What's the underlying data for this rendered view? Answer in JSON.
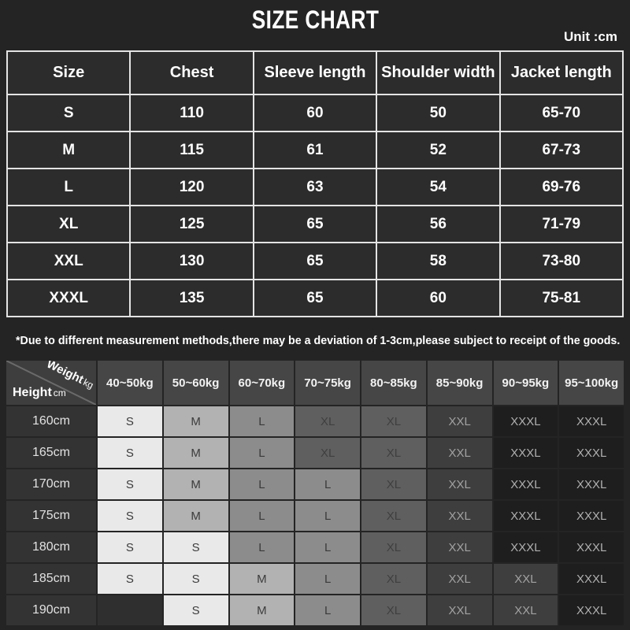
{
  "title": "SIZE CHART",
  "unit_label": "Unit :cm",
  "note": "*Due to different measurement methods,there may be a deviation of 1-3cm,please subject to receipt of the goods.",
  "chart_data": [
    {
      "type": "table",
      "name": "garment-measurements",
      "unit": "cm",
      "columns": [
        "Size",
        "Chest",
        "Sleeve length",
        "Shoulder width",
        "Jacket length"
      ],
      "rows": [
        [
          "S",
          "110",
          "60",
          "50",
          "65-70"
        ],
        [
          "M",
          "115",
          "61",
          "52",
          "67-73"
        ],
        [
          "L",
          "120",
          "63",
          "54",
          "69-76"
        ],
        [
          "XL",
          "125",
          "65",
          "56",
          "71-79"
        ],
        [
          "XXL",
          "130",
          "65",
          "58",
          "73-80"
        ],
        [
          "XXXL",
          "135",
          "65",
          "60",
          "75-81"
        ]
      ]
    },
    {
      "type": "table",
      "name": "height-weight-size-recommendation",
      "corner": {
        "col_axis": "Weight",
        "col_axis_unit": "kg",
        "row_axis": "Height",
        "row_axis_unit": "cm"
      },
      "columns": [
        "40~50kg",
        "50~60kg",
        "60~70kg",
        "70~75kg",
        "80~85kg",
        "85~90kg",
        "90~95kg",
        "95~100kg"
      ],
      "rows": [
        {
          "height": "160cm",
          "sizes": [
            "S",
            "M",
            "L",
            "XL",
            "XL",
            "XXL",
            "XXXL",
            "XXXL"
          ]
        },
        {
          "height": "165cm",
          "sizes": [
            "S",
            "M",
            "L",
            "XL",
            "XL",
            "XXL",
            "XXXL",
            "XXXL"
          ]
        },
        {
          "height": "170cm",
          "sizes": [
            "S",
            "M",
            "L",
            "L",
            "XL",
            "XXL",
            "XXXL",
            "XXXL"
          ]
        },
        {
          "height": "175cm",
          "sizes": [
            "S",
            "M",
            "L",
            "L",
            "XL",
            "XXL",
            "XXXL",
            "XXXL"
          ]
        },
        {
          "height": "180cm",
          "sizes": [
            "S",
            "S",
            "L",
            "L",
            "XL",
            "XXL",
            "XXXL",
            "XXXL"
          ]
        },
        {
          "height": "185cm",
          "sizes": [
            "S",
            "S",
            "M",
            "L",
            "XL",
            "XXL",
            "XXL",
            "XXXL"
          ]
        },
        {
          "height": "190cm",
          "sizes": [
            "",
            "S",
            "M",
            "L",
            "XL",
            "XXL",
            "XXL",
            "XXXL"
          ]
        }
      ],
      "cell_styles": {
        "S": {
          "bg": "#e9e9e9",
          "text": "#3c3c3c"
        },
        "M": {
          "bg": "#b2b2b2",
          "text": "#3c3c3c"
        },
        "L": {
          "bg": "#8c8c8c",
          "text": "#3a3a3a"
        },
        "XL": {
          "bg": "#5f5f5f",
          "text": "#3f3f3f"
        },
        "XXL": {
          "bg": "#3e3e3e",
          "text": "#a2a2a2"
        },
        "XXXL": {
          "bg": "#1e1e1e",
          "text": "#b0b0b0"
        }
      }
    }
  ]
}
